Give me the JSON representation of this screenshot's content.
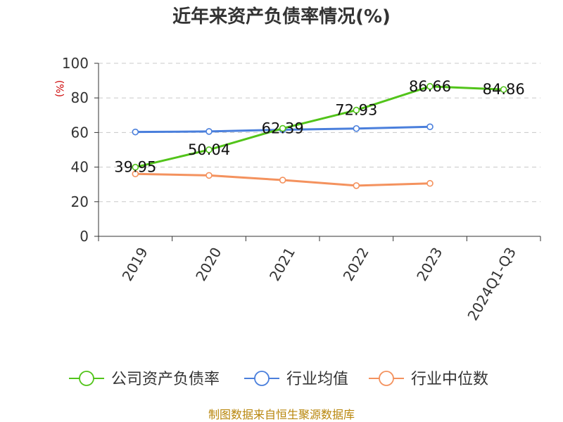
{
  "chart_data": {
    "type": "line",
    "title": "近年来资产负债率情况(%)",
    "ylabel": "(%)",
    "categories": [
      "2019",
      "2020",
      "2021",
      "2022",
      "2023",
      "2024Q1-Q3"
    ],
    "yticks": [
      "100",
      "80",
      "60",
      "40",
      "20",
      "0"
    ],
    "ylim": [
      0,
      100
    ],
    "grid": true,
    "legend_position": "bottom",
    "series": [
      {
        "name": "公司资产负债率",
        "color": "#52c41a",
        "values": [
          39.95,
          50.04,
          62.39,
          72.93,
          86.66,
          84.86
        ],
        "labels": [
          "39.95",
          "50.04",
          "62.39",
          "72.93",
          "86.66",
          "84.86"
        ]
      },
      {
        "name": "行业均值",
        "color": "#4a7fdc",
        "values": [
          60.3,
          60.6,
          61.6,
          62.3,
          63.3,
          null
        ]
      },
      {
        "name": "行业中位数",
        "color": "#f4925e",
        "values": [
          36.1,
          35.2,
          32.5,
          29.3,
          30.6,
          null
        ]
      }
    ]
  },
  "source": "制图数据来自恒生聚源数据库"
}
